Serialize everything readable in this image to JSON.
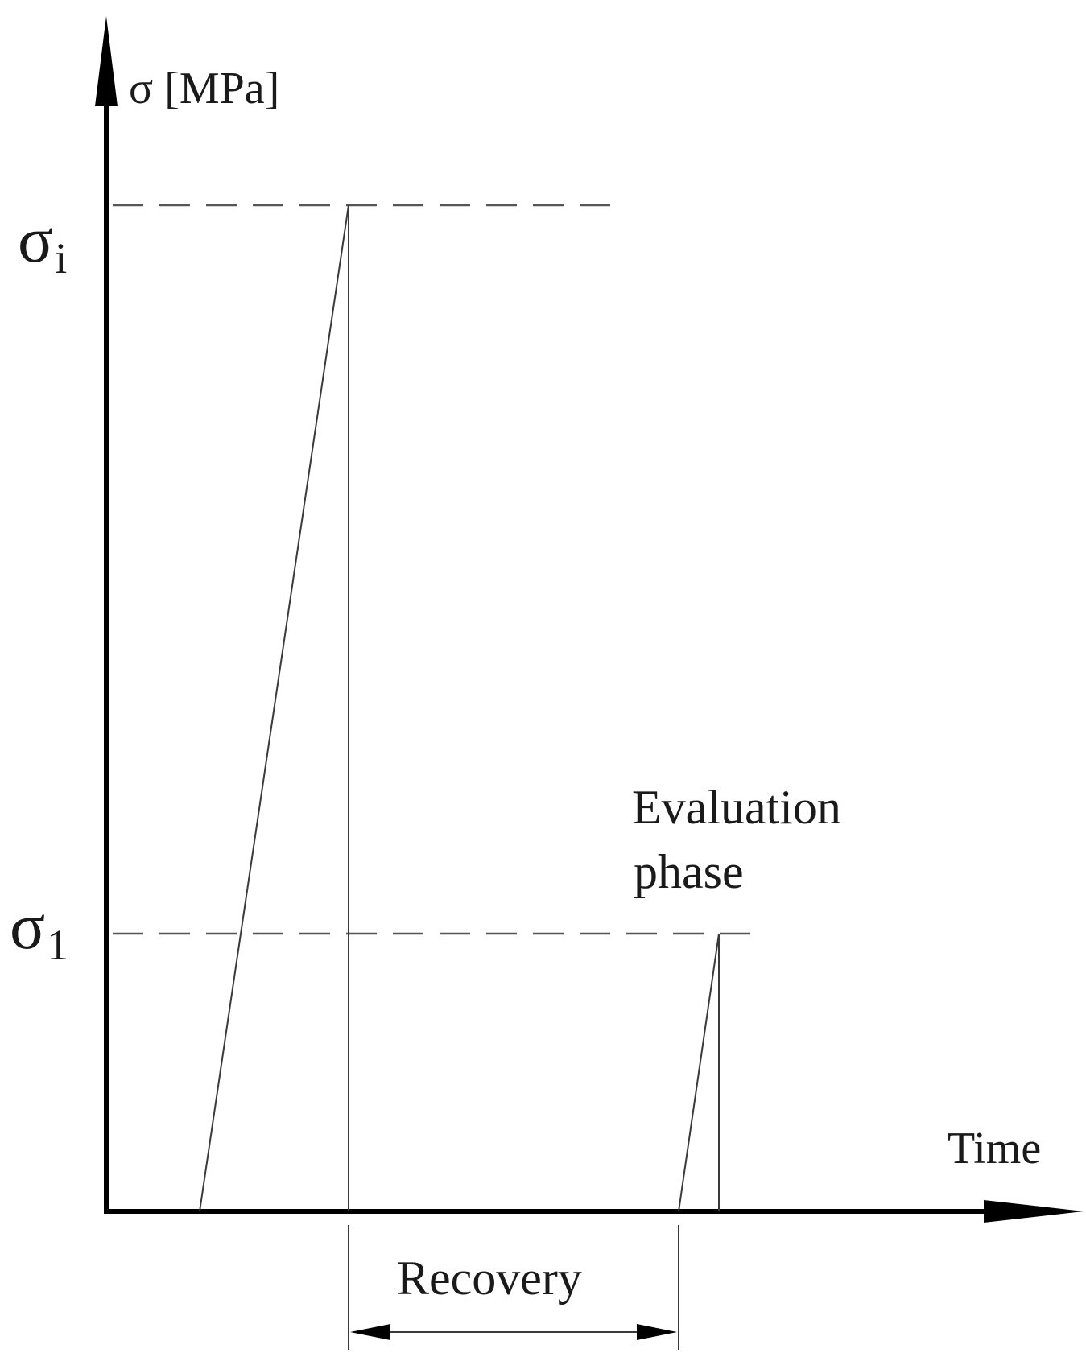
{
  "axes": {
    "y_label": "σ [MPa]",
    "x_label": "Time"
  },
  "levels": [
    {
      "symbol": "σ",
      "subscript": "i"
    },
    {
      "symbol": "σ",
      "subscript": "1"
    }
  ],
  "annotations": {
    "evaluation_line1": "Evaluation",
    "evaluation_line2": "phase",
    "recovery": "Recovery"
  },
  "colors": {
    "axis": "#000000",
    "line": "#3a3a3a",
    "dash": "#555555"
  }
}
